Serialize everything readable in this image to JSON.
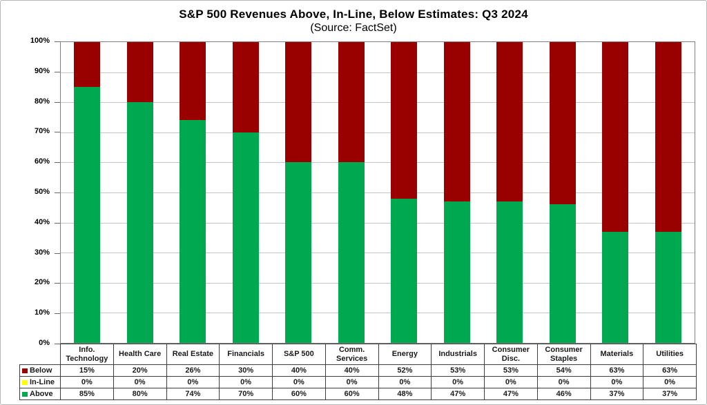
{
  "chart_data": {
    "type": "bar",
    "stacked": true,
    "title": "S&P 500 Revenues Above, In-Line, Below Estimates: Q3 2024",
    "subtitle": "(Source: FactSet)",
    "categories": [
      "Info. Technology",
      "Health Care",
      "Real Estate",
      "Financials",
      "S&P 500",
      "Comm. Services",
      "Energy",
      "Industrials",
      "Consumer Disc.",
      "Consumer Staples",
      "Materials",
      "Utilities"
    ],
    "series": [
      {
        "name": "Below",
        "color": "#990000",
        "values": [
          15,
          20,
          26,
          30,
          40,
          40,
          52,
          53,
          53,
          54,
          63,
          63
        ]
      },
      {
        "name": "In-Line",
        "color": "#FFFF00",
        "values": [
          0,
          0,
          0,
          0,
          0,
          0,
          0,
          0,
          0,
          0,
          0,
          0
        ]
      },
      {
        "name": "Above",
        "color": "#00A950",
        "values": [
          85,
          80,
          74,
          70,
          60,
          60,
          48,
          47,
          47,
          46,
          37,
          37
        ]
      }
    ],
    "ylim": [
      0,
      100
    ],
    "ytick_labels": [
      "0%",
      "10%",
      "20%",
      "30%",
      "40%",
      "50%",
      "60%",
      "70%",
      "80%",
      "90%",
      "100%"
    ],
    "grid": "horizontal",
    "legend_position": "table-left-column"
  },
  "table": {
    "rows": [
      {
        "label": "Below",
        "swatch_color": "#990000",
        "values": [
          "15%",
          "20%",
          "26%",
          "30%",
          "40%",
          "40%",
          "52%",
          "53%",
          "53%",
          "54%",
          "63%",
          "63%"
        ]
      },
      {
        "label": "In-Line",
        "swatch_color": "#FFFF00",
        "values": [
          "0%",
          "0%",
          "0%",
          "0%",
          "0%",
          "0%",
          "0%",
          "0%",
          "0%",
          "0%",
          "0%",
          "0%"
        ]
      },
      {
        "label": "Above",
        "swatch_color": "#00A950",
        "values": [
          "85%",
          "80%",
          "74%",
          "70%",
          "60%",
          "60%",
          "48%",
          "47%",
          "47%",
          "46%",
          "37%",
          "37%"
        ]
      }
    ]
  }
}
